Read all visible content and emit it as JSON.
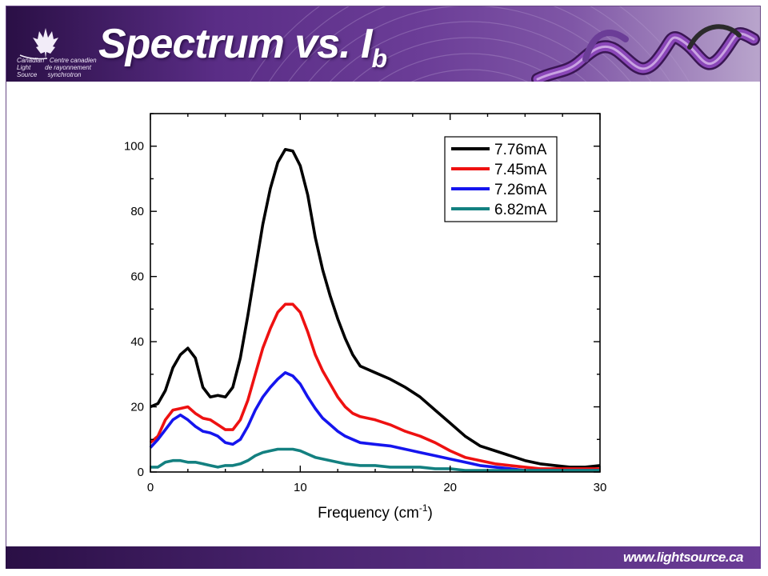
{
  "header": {
    "title_main": "Spectrum vs. I",
    "title_sub": "b",
    "logo_text": "Canadian   Centre canadien\nLight        de rayonnement\nSource      synchrotron"
  },
  "footer": {
    "url": "www.lightsource.ca"
  },
  "colors": {
    "header_purple": "#5a2d86",
    "series": [
      "#000000",
      "#ee1111",
      "#1515ee",
      "#138080"
    ]
  },
  "chart_data": {
    "type": "line",
    "title": "",
    "xlabel": "Frequency (cm",
    "xlabel_sup": "-1",
    "xlabel_end": ")",
    "ylabel": "",
    "xlim": [
      0,
      30
    ],
    "ylim": [
      0,
      110
    ],
    "xticks": [
      0,
      10,
      20,
      30
    ],
    "yticks": [
      0,
      20,
      40,
      60,
      80,
      100
    ],
    "grid": false,
    "legend_position": "top-right",
    "series": [
      {
        "name": "7.76mA",
        "color": "#000000",
        "points": [
          [
            0,
            20
          ],
          [
            0.5,
            21
          ],
          [
            1,
            25
          ],
          [
            1.5,
            32
          ],
          [
            2,
            36
          ],
          [
            2.5,
            38
          ],
          [
            3,
            35
          ],
          [
            3.5,
            26
          ],
          [
            4,
            23
          ],
          [
            4.5,
            23.5
          ],
          [
            5,
            23
          ],
          [
            5.5,
            26
          ],
          [
            6,
            35
          ],
          [
            6.5,
            48
          ],
          [
            7,
            62
          ],
          [
            7.5,
            76
          ],
          [
            8,
            87
          ],
          [
            8.5,
            95
          ],
          [
            9,
            99
          ],
          [
            9.5,
            98.5
          ],
          [
            10,
            94
          ],
          [
            10.5,
            85
          ],
          [
            11,
            72
          ],
          [
            11.5,
            62
          ],
          [
            12,
            54
          ],
          [
            12.5,
            47
          ],
          [
            13,
            41
          ],
          [
            13.5,
            36
          ],
          [
            14,
            32.5
          ],
          [
            15,
            30.5
          ],
          [
            16,
            28.5
          ],
          [
            17,
            26
          ],
          [
            18,
            23
          ],
          [
            19,
            19
          ],
          [
            20,
            15
          ],
          [
            21,
            11
          ],
          [
            22,
            8
          ],
          [
            23,
            6.5
          ],
          [
            24,
            5
          ],
          [
            25,
            3.5
          ],
          [
            26,
            2.5
          ],
          [
            27,
            2
          ],
          [
            28,
            1.5
          ],
          [
            29,
            1.5
          ],
          [
            30,
            2
          ]
        ]
      },
      {
        "name": "7.45mA",
        "color": "#ee1111",
        "points": [
          [
            0,
            9
          ],
          [
            0.5,
            11
          ],
          [
            1,
            16
          ],
          [
            1.5,
            19
          ],
          [
            2,
            19.5
          ],
          [
            2.5,
            20
          ],
          [
            3,
            18
          ],
          [
            3.5,
            16.5
          ],
          [
            4,
            16
          ],
          [
            4.5,
            14.5
          ],
          [
            5,
            13
          ],
          [
            5.5,
            13
          ],
          [
            6,
            16
          ],
          [
            6.5,
            22
          ],
          [
            7,
            30
          ],
          [
            7.5,
            38
          ],
          [
            8,
            44
          ],
          [
            8.5,
            49
          ],
          [
            9,
            51.5
          ],
          [
            9.5,
            51.5
          ],
          [
            10,
            49
          ],
          [
            10.5,
            43
          ],
          [
            11,
            36
          ],
          [
            11.5,
            31
          ],
          [
            12,
            27
          ],
          [
            12.5,
            23
          ],
          [
            13,
            20
          ],
          [
            13.5,
            18
          ],
          [
            14,
            17
          ],
          [
            15,
            16
          ],
          [
            16,
            14.5
          ],
          [
            17,
            12.5
          ],
          [
            18,
            11
          ],
          [
            19,
            9
          ],
          [
            20,
            6.5
          ],
          [
            21,
            4.5
          ],
          [
            22,
            3.5
          ],
          [
            23,
            2.5
          ],
          [
            24,
            2
          ],
          [
            25,
            1.5
          ],
          [
            26,
            1
          ],
          [
            27,
            1
          ],
          [
            28,
            1
          ],
          [
            29,
            1
          ],
          [
            30,
            1
          ]
        ]
      },
      {
        "name": "7.26mA",
        "color": "#1515ee",
        "points": [
          [
            0,
            7.5
          ],
          [
            0.5,
            10
          ],
          [
            1,
            13
          ],
          [
            1.5,
            16
          ],
          [
            2,
            17.5
          ],
          [
            2.5,
            16
          ],
          [
            3,
            14
          ],
          [
            3.5,
            12.5
          ],
          [
            4,
            12
          ],
          [
            4.5,
            11
          ],
          [
            5,
            9
          ],
          [
            5.5,
            8.5
          ],
          [
            6,
            10
          ],
          [
            6.5,
            14
          ],
          [
            7,
            19
          ],
          [
            7.5,
            23
          ],
          [
            8,
            26
          ],
          [
            8.5,
            28.5
          ],
          [
            9,
            30.5
          ],
          [
            9.5,
            29.5
          ],
          [
            10,
            27
          ],
          [
            10.5,
            23
          ],
          [
            11,
            19.5
          ],
          [
            11.5,
            16.5
          ],
          [
            12,
            14.5
          ],
          [
            12.5,
            12.5
          ],
          [
            13,
            11
          ],
          [
            13.5,
            10
          ],
          [
            14,
            9
          ],
          [
            15,
            8.5
          ],
          [
            16,
            8
          ],
          [
            17,
            7
          ],
          [
            18,
            6
          ],
          [
            19,
            5
          ],
          [
            20,
            4
          ],
          [
            21,
            3
          ],
          [
            22,
            2
          ],
          [
            23,
            1.5
          ],
          [
            24,
            1
          ],
          [
            25,
            0.5
          ],
          [
            26,
            0.5
          ],
          [
            27,
            0.5
          ],
          [
            28,
            0.5
          ],
          [
            29,
            0.5
          ],
          [
            30,
            0.5
          ]
        ]
      },
      {
        "name": "6.82mA",
        "color": "#138080",
        "points": [
          [
            0,
            1.5
          ],
          [
            0.5,
            1.5
          ],
          [
            1,
            3
          ],
          [
            1.5,
            3.5
          ],
          [
            2,
            3.5
          ],
          [
            2.5,
            3
          ],
          [
            3,
            3
          ],
          [
            3.5,
            2.5
          ],
          [
            4,
            2
          ],
          [
            4.5,
            1.5
          ],
          [
            5,
            2
          ],
          [
            5.5,
            2
          ],
          [
            6,
            2.5
          ],
          [
            6.5,
            3.5
          ],
          [
            7,
            5
          ],
          [
            7.5,
            6
          ],
          [
            8,
            6.5
          ],
          [
            8.5,
            7
          ],
          [
            9,
            7
          ],
          [
            9.5,
            7
          ],
          [
            10,
            6.5
          ],
          [
            10.5,
            5.5
          ],
          [
            11,
            4.5
          ],
          [
            11.5,
            4
          ],
          [
            12,
            3.5
          ],
          [
            13,
            2.5
          ],
          [
            14,
            2
          ],
          [
            15,
            2
          ],
          [
            16,
            1.5
          ],
          [
            17,
            1.5
          ],
          [
            18,
            1.5
          ],
          [
            19,
            1
          ],
          [
            20,
            1
          ],
          [
            21,
            0.5
          ],
          [
            22,
            0.5
          ],
          [
            23,
            0.5
          ],
          [
            24,
            0.5
          ],
          [
            25,
            0.5
          ],
          [
            26,
            0.5
          ],
          [
            27,
            0.5
          ],
          [
            28,
            0.5
          ],
          [
            29,
            0.5
          ],
          [
            30,
            0.5
          ]
        ]
      }
    ]
  }
}
